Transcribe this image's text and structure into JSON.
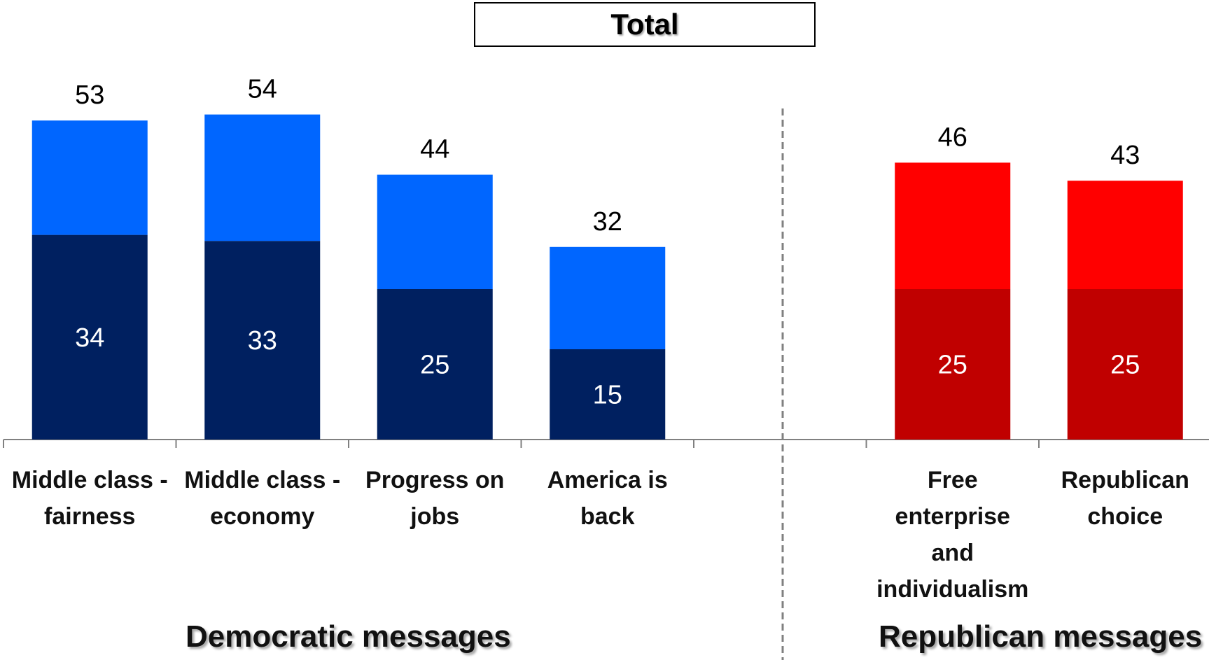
{
  "title": "Total",
  "groups": [
    {
      "label": "Democratic messages"
    },
    {
      "label": "Republican messages"
    }
  ],
  "chart_data": {
    "type": "bar",
    "stacked": true,
    "categories": [
      [
        "Middle class -",
        "fairness"
      ],
      [
        "Middle class -",
        "economy"
      ],
      [
        "Progress on",
        "jobs"
      ],
      [
        "America is",
        "back"
      ],
      [
        "Free",
        "enterprise",
        "and",
        "individualism"
      ],
      [
        "Republican",
        "choice"
      ]
    ],
    "slot_indices": [
      0,
      1,
      2,
      3,
      5,
      6
    ],
    "total_slots": 7,
    "ylim": [
      0,
      60
    ],
    "series": [
      {
        "values": [
          34,
          33,
          25,
          15,
          25,
          25
        ]
      },
      {
        "values": [
          19,
          21,
          19,
          17,
          21,
          18
        ]
      }
    ],
    "totals": [
      53,
      54,
      44,
      32,
      46,
      43
    ],
    "inner_labels": [
      34,
      33,
      25,
      15,
      25,
      25
    ],
    "colors": {
      "dem_dark": "#002060",
      "dem_light": "#0066FF",
      "rep_dark": "#C00000",
      "rep_light": "#FF0000",
      "axis": "#808080",
      "divider": "#808080"
    }
  }
}
